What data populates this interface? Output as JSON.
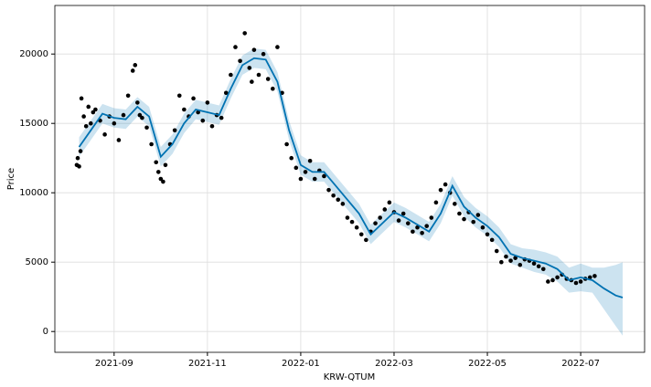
{
  "chart_data": {
    "type": "forecast",
    "x_label": "KRW-QTUM",
    "y_label": "Price",
    "xlim": [
      -1.27,
      11.37
    ],
    "ylim": [
      -1500,
      23500
    ],
    "xticks": [
      {
        "value": 0,
        "label": "2021-09"
      },
      {
        "value": 2,
        "label": "2021-11"
      },
      {
        "value": 4,
        "label": "2022-01"
      },
      {
        "value": 6,
        "label": "2022-03"
      },
      {
        "value": 8,
        "label": "2022-05"
      },
      {
        "value": 10,
        "label": "2022-07"
      }
    ],
    "yticks": [
      0,
      5000,
      10000,
      15000,
      20000
    ],
    "grid": true,
    "series": [
      {
        "kind": "scatter",
        "color": "#000000",
        "x": [
          -0.8,
          -0.78,
          -0.75,
          -0.72,
          -0.7,
          -0.65,
          -0.6,
          -0.55,
          -0.5,
          -0.45,
          -0.4,
          -0.3,
          -0.2,
          -0.1,
          0,
          0.1,
          0.2,
          0.3,
          0.4,
          0.45,
          0.5,
          0.55,
          0.6,
          0.7,
          0.8,
          0.9,
          0.95,
          1.0,
          1.05,
          1.1,
          1.2,
          1.3,
          1.4,
          1.5,
          1.6,
          1.7,
          1.8,
          1.9,
          2.0,
          2.1,
          2.2,
          2.3,
          2.4,
          2.5,
          2.6,
          2.7,
          2.8,
          2.9,
          2.95,
          3.0,
          3.1,
          3.2,
          3.3,
          3.4,
          3.5,
          3.6,
          3.7,
          3.8,
          3.9,
          4.0,
          4.1,
          4.2,
          4.3,
          4.4,
          4.5,
          4.6,
          4.7,
          4.8,
          4.9,
          5.0,
          5.1,
          5.2,
          5.3,
          5.4,
          5.5,
          5.6,
          5.7,
          5.8,
          5.9,
          6.0,
          6.1,
          6.2,
          6.3,
          6.4,
          6.5,
          6.6,
          6.7,
          6.8,
          6.9,
          7.0,
          7.1,
          7.2,
          7.3,
          7.4,
          7.5,
          7.6,
          7.7,
          7.8,
          7.9,
          8.0,
          8.1,
          8.2,
          8.3,
          8.4,
          8.5,
          8.6,
          8.7,
          8.8,
          8.9,
          9.0,
          9.1,
          9.2,
          9.3,
          9.4,
          9.5,
          9.6,
          9.7,
          9.8,
          9.9,
          10.0,
          10.1,
          10.2,
          10.3
        ],
        "values": [
          12000,
          12500,
          11900,
          13000,
          16800,
          15500,
          14800,
          16200,
          15000,
          15800,
          16000,
          15200,
          14200,
          15500,
          15000,
          13800,
          15600,
          17000,
          18800,
          19200,
          16500,
          15600,
          15400,
          14700,
          13500,
          12200,
          11500,
          11000,
          10800,
          12000,
          13500,
          14500,
          17000,
          16000,
          15500,
          16800,
          15800,
          15200,
          16500,
          14800,
          15600,
          15400,
          17200,
          18500,
          20500,
          19500,
          21500,
          19000,
          18000,
          20300,
          18500,
          20000,
          18200,
          17500,
          20500,
          17200,
          13500,
          12500,
          11800,
          11000,
          11500,
          12300,
          11000,
          11600,
          11200,
          10200,
          9800,
          9500,
          9200,
          8200,
          7900,
          7500,
          7000,
          6600,
          7200,
          7800,
          8200,
          8800,
          9300,
          8600,
          8000,
          8500,
          7800,
          7200,
          7500,
          7100,
          7600,
          8200,
          9300,
          10200,
          10600,
          10000,
          9200,
          8500,
          8100,
          8600,
          7900,
          8400,
          7500,
          7000,
          6600,
          5800,
          5000,
          5400,
          5100,
          5300,
          4800,
          5200,
          5100,
          4900,
          4700,
          4500,
          3600,
          3700,
          3900,
          4100,
          3800,
          3700,
          3500,
          3600,
          3800,
          3900,
          4000
        ]
      },
      {
        "kind": "line",
        "color": "#0072B2",
        "x": [
          -0.75,
          -0.5,
          -0.25,
          0,
          0.25,
          0.5,
          0.75,
          1.0,
          1.25,
          1.5,
          1.75,
          2.0,
          2.25,
          2.5,
          2.75,
          3.0,
          3.25,
          3.5,
          3.75,
          4.0,
          4.25,
          4.5,
          4.75,
          5.0,
          5.25,
          5.5,
          5.75,
          6.0,
          6.25,
          6.5,
          6.75,
          7.0,
          7.25,
          7.5,
          7.75,
          8.0,
          8.25,
          8.5,
          8.75,
          9.0,
          9.25,
          9.5,
          9.75,
          10.0,
          10.25,
          10.5,
          10.75,
          10.9
        ],
        "values": [
          13300,
          14500,
          15700,
          15400,
          15300,
          16200,
          15500,
          12600,
          13500,
          15000,
          16000,
          15800,
          15600,
          17500,
          19200,
          19700,
          19600,
          18000,
          14500,
          12000,
          11500,
          11500,
          10500,
          9500,
          8500,
          7000,
          7800,
          8600,
          8200,
          7700,
          7200,
          8500,
          10500,
          9000,
          8200,
          7600,
          6800,
          5600,
          5300,
          5100,
          4900,
          4500,
          3700,
          3900,
          3700,
          3100,
          2600,
          2450
        ]
      },
      {
        "kind": "band-lower",
        "color": "#0072B2",
        "x": [
          -0.75,
          -0.5,
          -0.25,
          0,
          0.25,
          0.5,
          0.75,
          1.0,
          1.25,
          1.5,
          1.75,
          2.0,
          2.25,
          2.5,
          2.75,
          3.0,
          3.25,
          3.5,
          3.75,
          4.0,
          4.25,
          4.5,
          4.75,
          5.0,
          5.25,
          5.5,
          5.75,
          6.0,
          6.25,
          6.5,
          6.75,
          7.0,
          7.25,
          7.5,
          7.75,
          8.0,
          8.25,
          8.5,
          8.75,
          9.0,
          9.25,
          9.5,
          9.75,
          10.0,
          10.25,
          10.5,
          10.75,
          10.9
        ],
        "values": [
          12600,
          13800,
          15000,
          14700,
          14600,
          15500,
          14800,
          11900,
          12800,
          14300,
          15300,
          15100,
          14900,
          16800,
          18500,
          19000,
          18900,
          17300,
          13800,
          11300,
          10800,
          10800,
          9800,
          8800,
          7800,
          6300,
          7100,
          7900,
          7500,
          7000,
          6500,
          7800,
          9800,
          8300,
          7500,
          6900,
          6100,
          4900,
          4600,
          4300,
          4100,
          3600,
          2800,
          2900,
          2800,
          1600,
          400,
          -300
        ]
      },
      {
        "kind": "band-upper",
        "color": "#0072B2",
        "x": [
          -0.75,
          -0.5,
          -0.25,
          0,
          0.25,
          0.5,
          0.75,
          1.0,
          1.25,
          1.5,
          1.75,
          2.0,
          2.25,
          2.5,
          2.75,
          3.0,
          3.25,
          3.5,
          3.75,
          4.0,
          4.25,
          4.5,
          4.75,
          5.0,
          5.25,
          5.5,
          5.75,
          6.0,
          6.25,
          6.5,
          6.75,
          7.0,
          7.25,
          7.5,
          7.75,
          8.0,
          8.25,
          8.5,
          8.75,
          9.0,
          9.25,
          9.5,
          9.75,
          10.0,
          10.25,
          10.5,
          10.75,
          10.9
        ],
        "values": [
          14000,
          15200,
          16400,
          16100,
          16000,
          16900,
          16200,
          13300,
          14200,
          15700,
          16700,
          16500,
          16300,
          18200,
          19900,
          20400,
          20300,
          18700,
          15200,
          12700,
          12200,
          12200,
          11200,
          10200,
          9200,
          7700,
          8500,
          9300,
          8900,
          8400,
          7900,
          9200,
          11200,
          9700,
          8900,
          8300,
          7500,
          6300,
          6000,
          5900,
          5700,
          5400,
          4600,
          4900,
          4600,
          4600,
          4800,
          5000
        ]
      }
    ]
  }
}
